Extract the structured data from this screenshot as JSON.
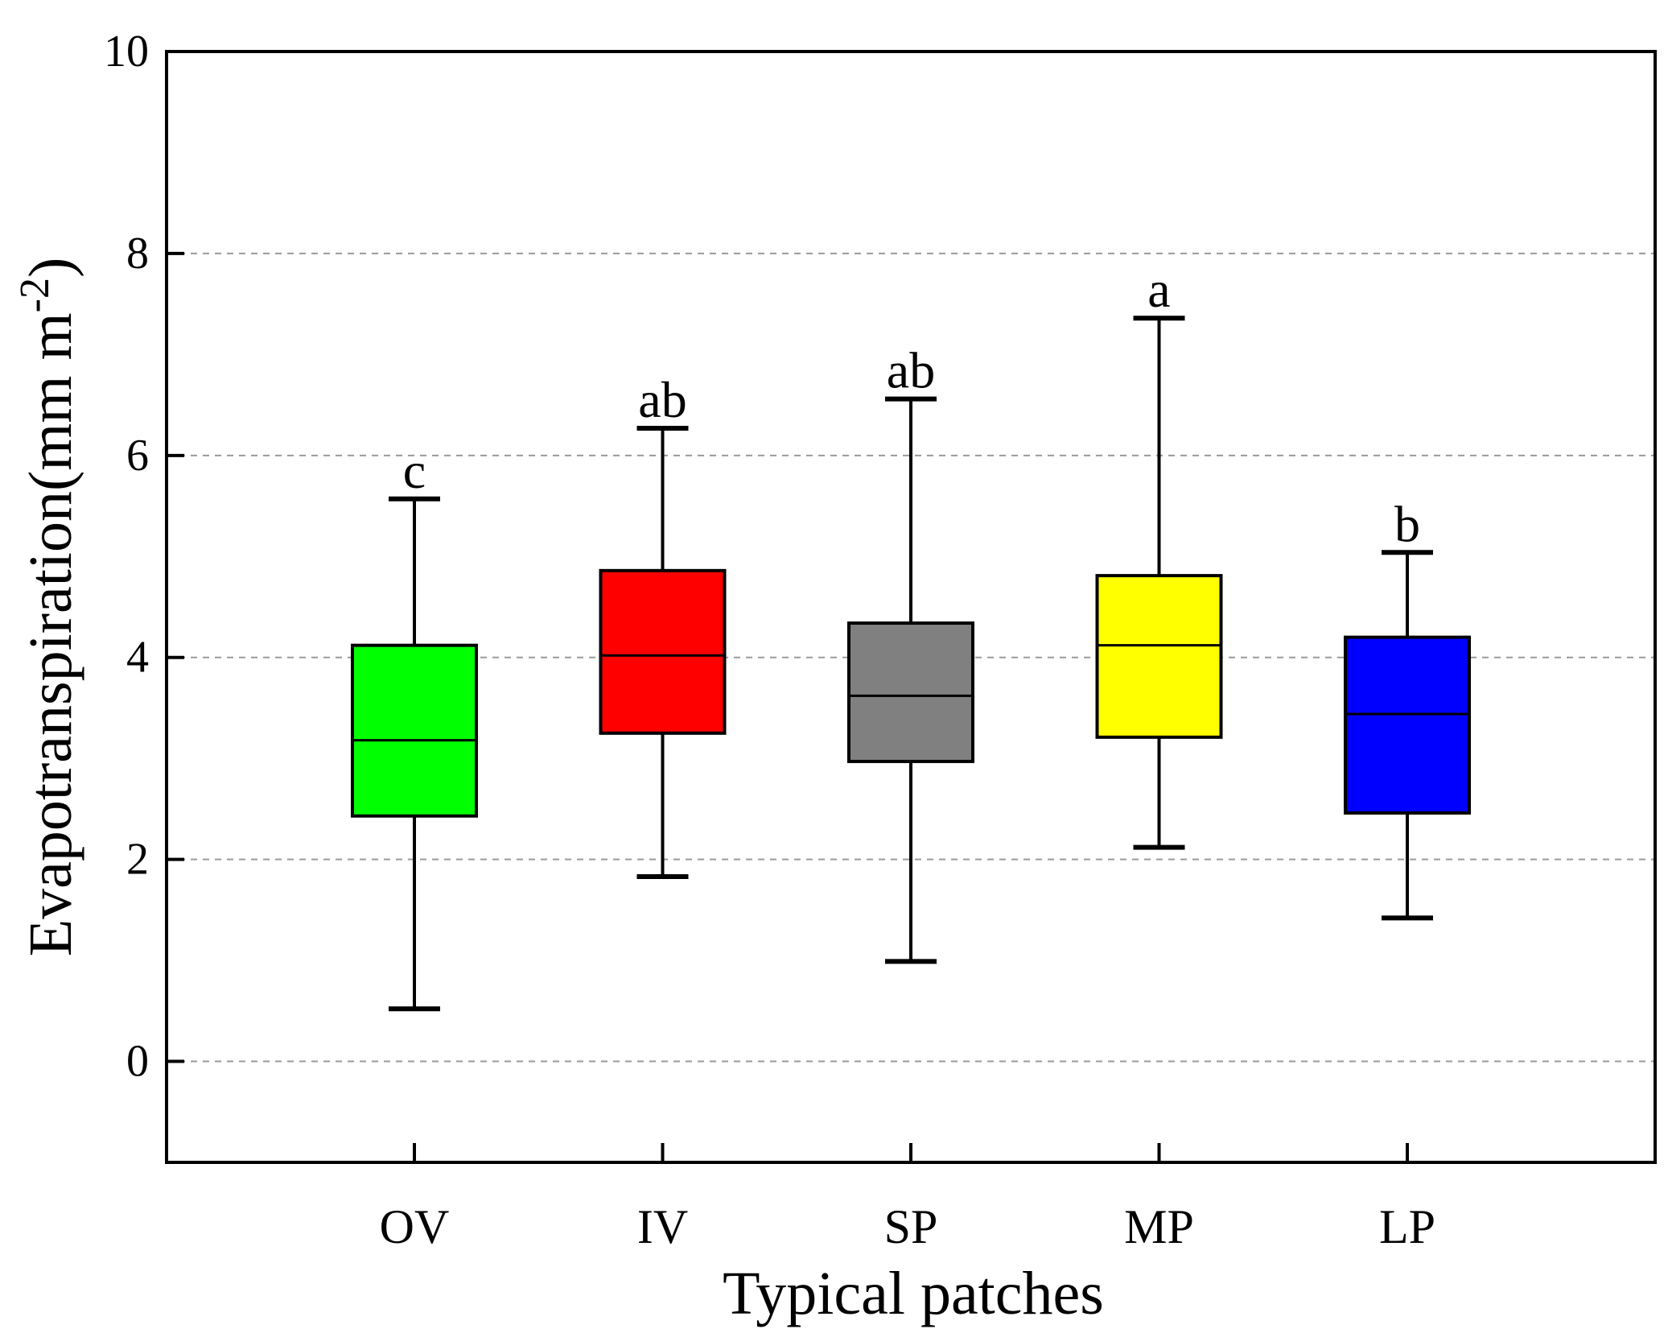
{
  "chart_data": {
    "type": "box",
    "title": "",
    "xlabel": "Typical patches",
    "ylabel_main": "Evapotranspiration(mm m",
    "ylabel_sup": "-2",
    "ylabel_close": ")",
    "ylim": [
      -1,
      10
    ],
    "yticks": [
      0,
      2,
      4,
      6,
      8,
      10
    ],
    "ytick_labels": [
      "0",
      "2",
      "4",
      "6",
      "8",
      "10"
    ],
    "grid": true,
    "categories": [
      "OV",
      "IV",
      "SP",
      "MP",
      "LP"
    ],
    "boxes": [
      {
        "name": "OV",
        "whisker_low": 0.52,
        "q1": 2.43,
        "median": 3.18,
        "q3": 4.12,
        "whisker_high": 5.57,
        "letter": "c",
        "color": "#00ff00"
      },
      {
        "name": "IV",
        "whisker_low": 1.83,
        "q1": 3.25,
        "median": 4.02,
        "q3": 4.86,
        "whisker_high": 6.27,
        "letter": "ab",
        "color": "#ff0000"
      },
      {
        "name": "SP",
        "whisker_low": 0.99,
        "q1": 2.97,
        "median": 3.62,
        "q3": 4.34,
        "whisker_high": 6.56,
        "letter": "ab",
        "color": "#808080"
      },
      {
        "name": "MP",
        "whisker_low": 2.12,
        "q1": 3.21,
        "median": 4.12,
        "q3": 4.81,
        "whisker_high": 7.36,
        "letter": "a",
        "color": "#ffff00"
      },
      {
        "name": "LP",
        "whisker_low": 1.42,
        "q1": 2.46,
        "median": 3.44,
        "q3": 4.2,
        "whisker_high": 5.04,
        "letter": "b",
        "color": "#0000ff"
      }
    ]
  }
}
